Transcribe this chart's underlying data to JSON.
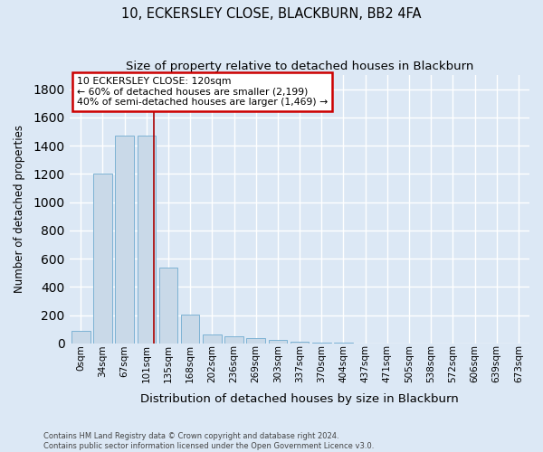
{
  "title": "10, ECKERSLEY CLOSE, BLACKBURN, BB2 4FA",
  "subtitle": "Size of property relative to detached houses in Blackburn",
  "xlabel": "Distribution of detached houses by size in Blackburn",
  "ylabel": "Number of detached properties",
  "bar_labels": [
    "0sqm",
    "34sqm",
    "67sqm",
    "101sqm",
    "135sqm",
    "168sqm",
    "202sqm",
    "236sqm",
    "269sqm",
    "303sqm",
    "337sqm",
    "370sqm",
    "404sqm",
    "437sqm",
    "471sqm",
    "505sqm",
    "538sqm",
    "572sqm",
    "606sqm",
    "639sqm",
    "673sqm"
  ],
  "bar_values": [
    90,
    1200,
    1470,
    1470,
    540,
    205,
    65,
    48,
    35,
    28,
    12,
    8,
    5,
    2,
    1,
    0,
    0,
    0,
    0,
    0,
    0
  ],
  "bar_color": "#c9d9e8",
  "bar_edge_color": "#6fabd0",
  "ylim_max": 1900,
  "yticks": [
    0,
    200,
    400,
    600,
    800,
    1000,
    1200,
    1400,
    1600,
    1800
  ],
  "annotation_line1": "10 ECKERSLEY CLOSE: 120sqm",
  "annotation_line2": "← 60% of detached houses are smaller (2,199)",
  "annotation_line3": "40% of semi-detached houses are larger (1,469) →",
  "footer1": "Contains HM Land Registry data © Crown copyright and database right 2024.",
  "footer2": "Contains public sector information licensed under the Open Government Licence v3.0.",
  "bg_color": "#dce8f5",
  "grid_color": "#ffffff",
  "annotation_box_edge_color": "#cc0000",
  "vline_color": "#aa0000",
  "vline_x": 3.35
}
